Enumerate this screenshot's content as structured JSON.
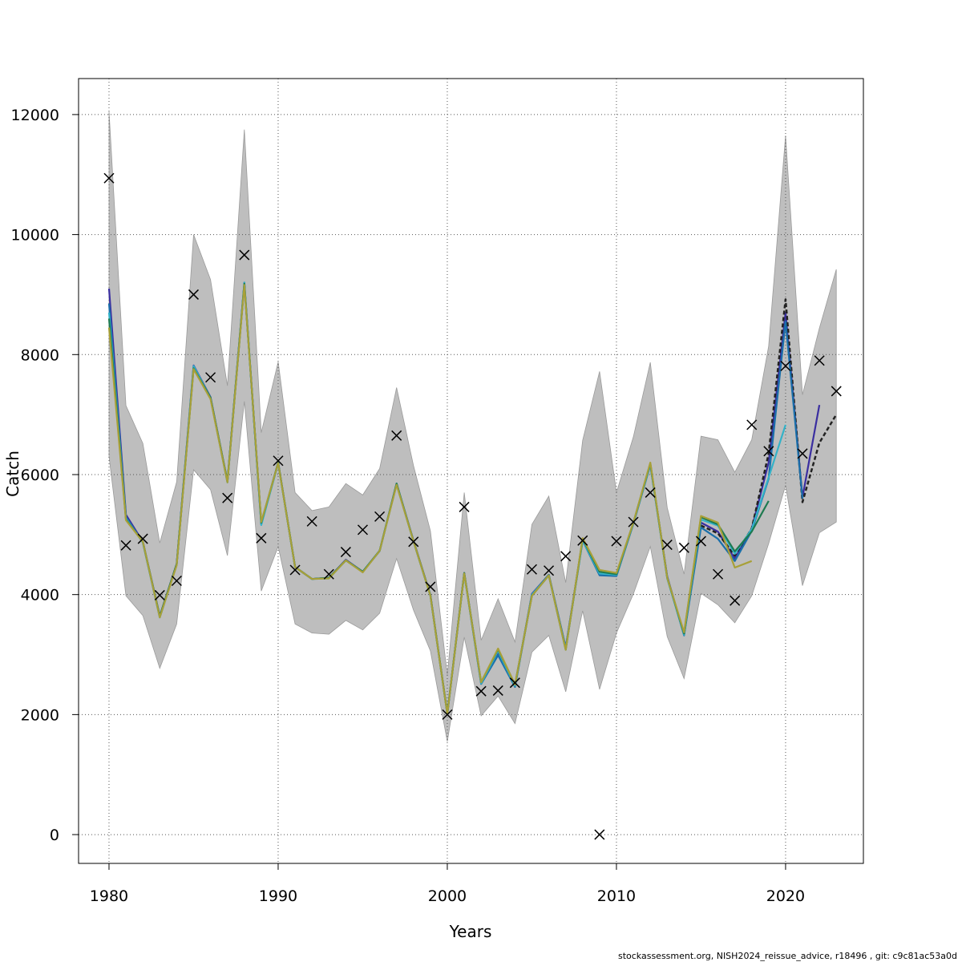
{
  "chart_data": {
    "type": "line",
    "xlabel": "Years",
    "ylabel": "Catch",
    "xlim": [
      1978.2,
      1024.6
    ],
    "ylim": [
      -480,
      12600
    ],
    "x_ticks": [
      1980,
      1990,
      2000,
      2010,
      2020
    ],
    "y_ticks": [
      0,
      2000,
      4000,
      6000,
      8000,
      10000,
      12000
    ],
    "x_tick_labels": [
      "1980",
      "1990",
      "2000",
      "2010",
      "2020"
    ],
    "y_tick_labels": [
      "0",
      "2000",
      "4000",
      "6000",
      "8000",
      "10000",
      "12000"
    ],
    "grid": true,
    "band_color": "#bebebe",
    "band": {
      "x": [
        1980,
        1981,
        1982,
        1983,
        1984,
        1985,
        1986,
        1987,
        1988,
        1989,
        1990,
        1991,
        1992,
        1993,
        1994,
        1995,
        1996,
        1997,
        1998,
        1999,
        2000,
        2001,
        2002,
        2003,
        2004,
        2005,
        2006,
        2007,
        2008,
        2009,
        2010,
        2011,
        2012,
        2013,
        2014,
        2015,
        2016,
        2017,
        2018,
        2019,
        2020,
        2021,
        2022,
        2023
      ],
      "upper": [
        12050,
        7150,
        6520,
        4860,
        5880,
        10000,
        9250,
        7480,
        11750,
        6700,
        7880,
        5700,
        5400,
        5460,
        5850,
        5660,
        6100,
        7450,
        6150,
        5060,
        2660,
        5700,
        3240,
        3930,
        3210,
        5170,
        5640,
        4200,
        6570,
        7720,
        5700,
        6630,
        7870,
        5450,
        4340,
        6640,
        6580,
        6040,
        6580,
        8140,
        11650,
        7330,
        8440,
        9420
      ],
      "lower": [
        6300,
        3980,
        3650,
        2770,
        3510,
        6080,
        5750,
        4650,
        7220,
        4060,
        4800,
        3510,
        3360,
        3340,
        3570,
        3410,
        3690,
        4600,
        3740,
        3060,
        1550,
        3290,
        1980,
        2310,
        1850,
        3040,
        3320,
        2380,
        3730,
        2420,
        3360,
        4010,
        4800,
        3300,
        2600,
        4020,
        3830,
        3530,
        3980,
        4850,
        5820,
        4150,
        5030,
        5210
      ]
    },
    "observed": {
      "marker": "x",
      "x": [
        1980,
        1981,
        1982,
        1983,
        1984,
        1985,
        1986,
        1987,
        1988,
        1989,
        1990,
        1991,
        1992,
        1993,
        1994,
        1995,
        1996,
        1997,
        1998,
        1999,
        2000,
        2001,
        2002,
        2003,
        2004,
        2005,
        2006,
        2007,
        2008,
        2009,
        2010,
        2011,
        2012,
        2013,
        2014,
        2015,
        2016,
        2017,
        2018,
        2019,
        2020,
        2021,
        2022,
        2023
      ],
      "y": [
        10940,
        4820,
        4930,
        3990,
        4230,
        9000,
        7620,
        5610,
        9660,
        4940,
        6230,
        4410,
        5220,
        4340,
        4710,
        5080,
        5300,
        6650,
        4880,
        4130,
        2000,
        5460,
        2390,
        2400,
        2530,
        4420,
        4400,
        4640,
        4900,
        0,
        4890,
        5210,
        5700,
        4830,
        4780,
        4890,
        4340,
        3900,
        6830,
        6390,
        7810,
        6350,
        7900,
        7390
      ]
    },
    "series": [
      {
        "color": "#3a2ea0",
        "x": [
          1980,
          1981,
          1982,
          1983,
          1984,
          1985,
          1986,
          1987,
          1988,
          1989,
          1990,
          1991,
          1992,
          1993,
          1994,
          1995,
          1996,
          1997,
          1998,
          1999,
          2000,
          2001,
          2002,
          2003,
          2004,
          2005,
          2006,
          2007,
          2008,
          2009,
          2010,
          2011,
          2012,
          2013,
          2014,
          2015,
          2016,
          2017,
          2018,
          2019,
          2020,
          2021,
          2022
        ],
        "y": [
          9100,
          5330,
          4880,
          3640,
          4510,
          7820,
          7290,
          5880,
          9200,
          5180,
          6200,
          4460,
          4260,
          4280,
          4580,
          4380,
          4730,
          5850,
          4900,
          3990,
          2010,
          4360,
          2520,
          3010,
          2470,
          4010,
          4330,
          3120,
          4910,
          4330,
          4320,
          5190,
          6170,
          4300,
          3330,
          5200,
          5050,
          4600,
          5100,
          6200,
          8700,
          5620,
          7160
        ]
      },
      {
        "color": "#222222",
        "dashed": true,
        "x": [
          2015,
          2016,
          2017,
          2018,
          2019,
          2020,
          2021,
          2022,
          2023
        ],
        "y": [
          5150,
          5020,
          4650,
          5100,
          6350,
          8920,
          5540,
          6530,
          7000
        ]
      },
      {
        "color": "#1a6faa",
        "x": [
          1980,
          1981,
          1982,
          1983,
          1984,
          1985,
          1986,
          1987,
          1988,
          1989,
          1990,
          1991,
          1992,
          1993,
          1994,
          1995,
          1996,
          1997,
          1998,
          1999,
          2000,
          2001,
          2002,
          2003,
          2004,
          2005,
          2006,
          2007,
          2008,
          2009,
          2010,
          2011,
          2012,
          2013,
          2014,
          2015,
          2016,
          2017,
          2018,
          2019,
          2020,
          2021
        ],
        "y": [
          8850,
          5290,
          4870,
          3620,
          4500,
          7790,
          7280,
          5870,
          9180,
          5170,
          6190,
          4460,
          4260,
          4280,
          4570,
          4380,
          4730,
          5840,
          4890,
          3980,
          2010,
          4350,
          2510,
          2990,
          2460,
          4000,
          4330,
          3110,
          4900,
          4320,
          4310,
          5180,
          6160,
          4290,
          3320,
          5120,
          4930,
          4560,
          5060,
          5930,
          8550,
          5600
        ]
      },
      {
        "color": "#33b2c8",
        "x": [
          1980,
          1981,
          1982,
          1983,
          1984,
          1985,
          1986,
          1987,
          1988,
          1989,
          1990,
          1991,
          1992,
          1993,
          1994,
          1995,
          1996,
          1997,
          1998,
          1999,
          2000,
          2001,
          2002,
          2003,
          2004,
          2005,
          2006,
          2007,
          2008,
          2009,
          2010,
          2011,
          2012,
          2013,
          2014,
          2015,
          2016,
          2017,
          2018,
          2019,
          2020
        ],
        "y": [
          8700,
          5270,
          4870,
          3620,
          4500,
          7810,
          7280,
          5870,
          9200,
          5160,
          6190,
          4460,
          4260,
          4270,
          4570,
          4380,
          4730,
          5850,
          4890,
          3980,
          2010,
          4350,
          2520,
          3060,
          2480,
          4000,
          4320,
          3100,
          4900,
          4350,
          4330,
          5190,
          6170,
          4270,
          3330,
          5250,
          5150,
          4680,
          5090,
          5950,
          6830
        ]
      },
      {
        "color": "#1e7a50",
        "x": [
          1980,
          1981,
          1982,
          1983,
          1984,
          1985,
          1986,
          1987,
          1988,
          1989,
          1990,
          1991,
          1992,
          1993,
          1994,
          1995,
          1996,
          1997,
          1998,
          1999,
          2000,
          2001,
          2002,
          2003,
          2004,
          2005,
          2006,
          2007,
          2008,
          2009,
          2010,
          2011,
          2012,
          2013,
          2014,
          2015,
          2016,
          2017,
          2018,
          2019
        ],
        "y": [
          8600,
          5250,
          4880,
          3640,
          4510,
          7770,
          7280,
          5890,
          9180,
          5200,
          6200,
          4460,
          4260,
          4280,
          4570,
          4380,
          4730,
          5850,
          4890,
          3990,
          2020,
          4360,
          2540,
          3090,
          2500,
          3980,
          4320,
          3080,
          4930,
          4380,
          4340,
          5200,
          6190,
          4280,
          3350,
          5290,
          5170,
          4720,
          5050,
          5560
        ]
      },
      {
        "color": "#a8a038",
        "x": [
          1980,
          1981,
          1982,
          1983,
          1984,
          1985,
          1986,
          1987,
          1988,
          1989,
          1990,
          1991,
          1992,
          1993,
          1994,
          1995,
          1996,
          1997,
          1998,
          1999,
          2000,
          2001,
          2002,
          2003,
          2004,
          2005,
          2006,
          2007,
          2008,
          2009,
          2010,
          2011,
          2012,
          2013,
          2014,
          2015,
          2016,
          2017,
          2018
        ],
        "y": [
          8450,
          5240,
          4880,
          3620,
          4490,
          7760,
          7260,
          5870,
          9160,
          5210,
          6190,
          4460,
          4260,
          4270,
          4570,
          4370,
          4730,
          5830,
          4890,
          3980,
          2010,
          4350,
          2540,
          3100,
          2500,
          3980,
          4320,
          3080,
          4940,
          4410,
          4360,
          5200,
          6200,
          4280,
          3370,
          5310,
          5200,
          4450,
          4560
        ]
      }
    ],
    "footer_text": "stockassessment.org, NISH2024_reissue_advice, r18496 , git: c9c81ac53a0d"
  }
}
